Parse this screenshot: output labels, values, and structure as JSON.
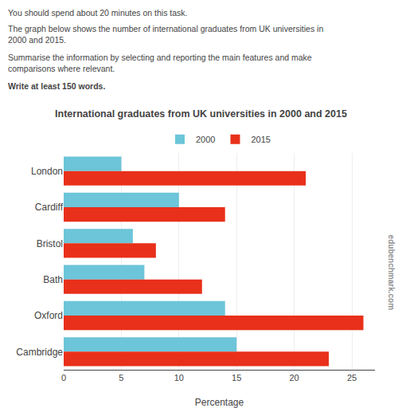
{
  "chart_data": {
    "type": "bar",
    "orientation": "horizontal",
    "title": "International graduates from UK universities in 2000 and 2015",
    "categories": [
      "London",
      "Cardiff",
      "Bristol",
      "Bath",
      "Oxford",
      "Cambridge"
    ],
    "series": [
      {
        "name": "2000",
        "color": "#6cc5d9",
        "values": [
          5,
          10,
          6,
          7,
          14,
          15
        ]
      },
      {
        "name": "2015",
        "color": "#e8301a",
        "values": [
          21,
          14,
          8,
          12,
          26,
          23
        ]
      }
    ],
    "xlabel": "Percentage",
    "xlim": [
      0,
      27
    ],
    "xticks": [
      0,
      5,
      10,
      15,
      20,
      25
    ],
    "grid": true,
    "legend": "top",
    "annotations": [
      "You should spend about 20 minutes on this task.",
      "The graph below shows the number of international graduates from UK universities in\n2000 and 2015.",
      "Summarise the information by selecting and reporting the main features and make\ncomparisons where relevant.",
      "Write at least 150 words.",
      "edubenchmark.com"
    ]
  }
}
